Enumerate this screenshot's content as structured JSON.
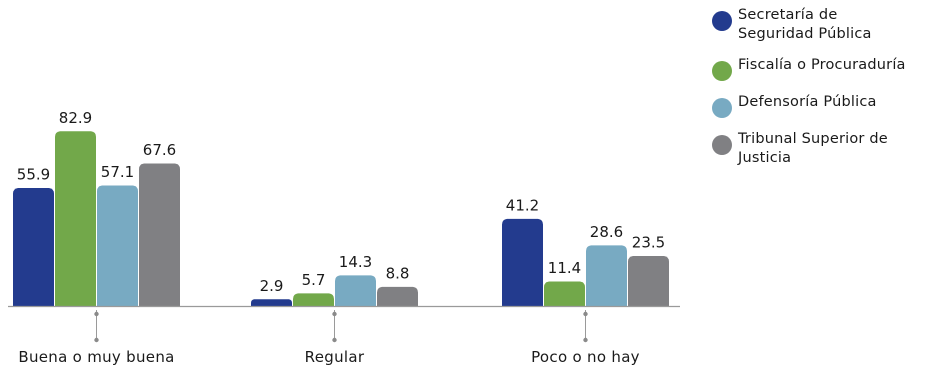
{
  "chart_data": {
    "type": "bar",
    "categories": [
      "Buena o muy buena",
      "Regular",
      "Poco o no hay"
    ],
    "series": [
      {
        "name": "Secretaría de Seguridad Pública",
        "color": "#233b8e",
        "values": [
          55.9,
          2.9,
          41.2
        ]
      },
      {
        "name": "Fiscalía o Procuraduría",
        "color": "#72a84a",
        "values": [
          82.9,
          5.7,
          11.4
        ]
      },
      {
        "name": "Defensoría Pública",
        "color": "#78aac2",
        "values": [
          57.1,
          14.3,
          28.6
        ]
      },
      {
        "name": "Tribunal Superior de Justicia",
        "color": "#808083",
        "values": [
          67.6,
          8.8,
          23.5
        ]
      }
    ],
    "legend": {
      "placement": "top-right",
      "items": [
        {
          "lines": [
            "Secretaría de",
            "Seguridad Pública"
          ],
          "color": "#233b8e"
        },
        {
          "lines": [
            "Fiscalía o Procuraduría"
          ],
          "color": "#72a84a"
        },
        {
          "lines": [
            "Defensoría Pública"
          ],
          "color": "#78aac2"
        },
        {
          "lines": [
            "Tribunal Superior de",
            "Justicia"
          ],
          "color": "#808083"
        }
      ]
    },
    "ylim": [
      0,
      100
    ],
    "grid": false
  }
}
